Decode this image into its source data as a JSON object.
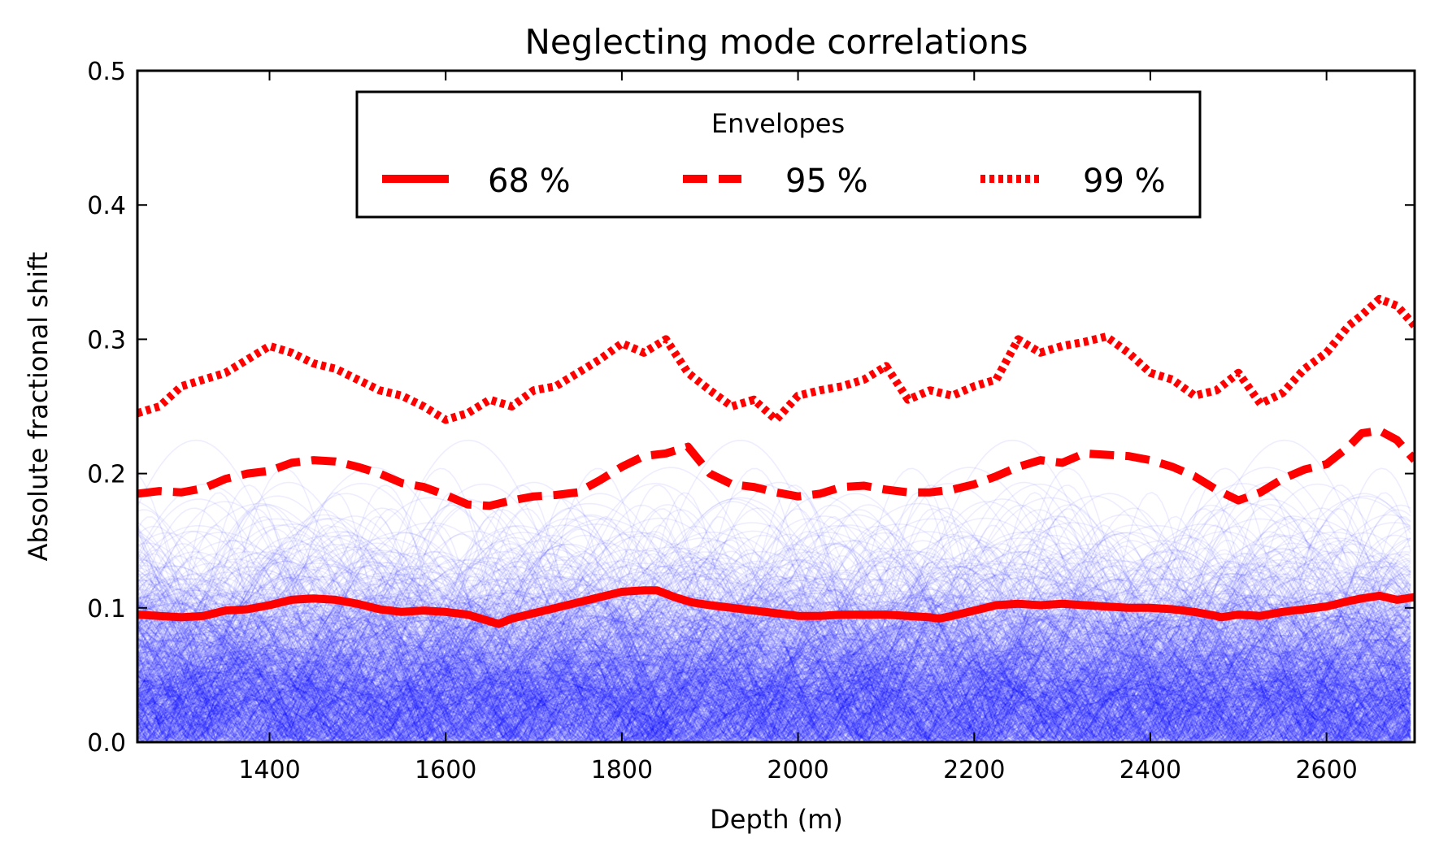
{
  "chart_data": {
    "type": "line",
    "title": "Neglecting mode correlations",
    "xlabel": "Depth (m)",
    "ylabel": "Absolute fractional shift",
    "xlim": [
      1250,
      2700
    ],
    "ylim": [
      0.0,
      0.5
    ],
    "xticks": [
      1400,
      1600,
      1800,
      2000,
      2200,
      2400,
      2600
    ],
    "xtick_labels": [
      "1400",
      "1600",
      "1800",
      "2000",
      "2200",
      "2400",
      "2600"
    ],
    "yticks": [
      0.0,
      0.1,
      0.2,
      0.3,
      0.4,
      0.5
    ],
    "ytick_labels": [
      "0.0",
      "0.1",
      "0.2",
      "0.3",
      "0.4",
      "0.5"
    ],
    "background_traces": {
      "description_color": "#0000ff",
      "count_shown": 700,
      "style": "thin translucent blue arcs |sin| realizations"
    },
    "legend": {
      "title": "Envelopes",
      "position": "upper-center",
      "entries": [
        "68 %",
        "95 %",
        "99 %"
      ]
    },
    "series": [
      {
        "name": "68 %",
        "style": "solid",
        "color": "#ff0000",
        "x": [
          1250,
          1275,
          1300,
          1325,
          1350,
          1375,
          1400,
          1425,
          1450,
          1475,
          1500,
          1525,
          1550,
          1575,
          1600,
          1625,
          1650,
          1660,
          1675,
          1700,
          1725,
          1750,
          1775,
          1800,
          1825,
          1840,
          1860,
          1880,
          1900,
          1925,
          1950,
          1975,
          2000,
          2025,
          2050,
          2075,
          2100,
          2125,
          2150,
          2160,
          2175,
          2200,
          2225,
          2250,
          2275,
          2300,
          2325,
          2350,
          2375,
          2400,
          2425,
          2450,
          2475,
          2480,
          2500,
          2525,
          2550,
          2575,
          2600,
          2625,
          2640,
          2660,
          2680,
          2700
        ],
        "values": [
          0.095,
          0.094,
          0.093,
          0.094,
          0.098,
          0.099,
          0.102,
          0.106,
          0.107,
          0.106,
          0.103,
          0.099,
          0.097,
          0.098,
          0.097,
          0.095,
          0.09,
          0.088,
          0.092,
          0.096,
          0.1,
          0.104,
          0.108,
          0.112,
          0.113,
          0.113,
          0.108,
          0.104,
          0.102,
          0.1,
          0.098,
          0.096,
          0.094,
          0.094,
          0.095,
          0.095,
          0.095,
          0.094,
          0.093,
          0.092,
          0.094,
          0.098,
          0.102,
          0.103,
          0.102,
          0.103,
          0.102,
          0.101,
          0.1,
          0.1,
          0.099,
          0.097,
          0.094,
          0.093,
          0.095,
          0.094,
          0.097,
          0.099,
          0.101,
          0.105,
          0.107,
          0.109,
          0.106,
          0.108
        ]
      },
      {
        "name": "95 %",
        "style": "dashed",
        "color": "#ff0000",
        "x": [
          1250,
          1275,
          1300,
          1325,
          1350,
          1375,
          1400,
          1425,
          1450,
          1475,
          1500,
          1525,
          1550,
          1575,
          1600,
          1625,
          1650,
          1675,
          1700,
          1725,
          1750,
          1775,
          1800,
          1825,
          1850,
          1875,
          1900,
          1925,
          1950,
          1975,
          2000,
          2025,
          2050,
          2075,
          2100,
          2125,
          2150,
          2175,
          2200,
          2225,
          2250,
          2275,
          2300,
          2325,
          2350,
          2375,
          2400,
          2425,
          2450,
          2475,
          2500,
          2525,
          2550,
          2575,
          2600,
          2625,
          2640,
          2660,
          2680,
          2700
        ],
        "values": [
          0.185,
          0.187,
          0.186,
          0.189,
          0.196,
          0.2,
          0.202,
          0.208,
          0.21,
          0.209,
          0.205,
          0.2,
          0.193,
          0.19,
          0.184,
          0.177,
          0.176,
          0.18,
          0.183,
          0.184,
          0.186,
          0.195,
          0.205,
          0.213,
          0.215,
          0.22,
          0.2,
          0.192,
          0.19,
          0.186,
          0.183,
          0.185,
          0.19,
          0.191,
          0.188,
          0.186,
          0.186,
          0.188,
          0.192,
          0.198,
          0.205,
          0.21,
          0.208,
          0.215,
          0.214,
          0.213,
          0.21,
          0.205,
          0.198,
          0.188,
          0.18,
          0.186,
          0.196,
          0.203,
          0.207,
          0.22,
          0.23,
          0.232,
          0.225,
          0.21
        ]
      },
      {
        "name": "99 %",
        "style": "dotted",
        "color": "#ff0000",
        "x": [
          1250,
          1275,
          1300,
          1325,
          1350,
          1375,
          1400,
          1425,
          1450,
          1475,
          1500,
          1525,
          1550,
          1575,
          1600,
          1625,
          1650,
          1675,
          1700,
          1725,
          1750,
          1775,
          1800,
          1825,
          1850,
          1875,
          1900,
          1925,
          1950,
          1975,
          2000,
          2025,
          2050,
          2075,
          2100,
          2125,
          2150,
          2175,
          2200,
          2225,
          2250,
          2275,
          2300,
          2325,
          2350,
          2375,
          2400,
          2425,
          2450,
          2475,
          2500,
          2525,
          2550,
          2575,
          2600,
          2625,
          2640,
          2660,
          2680,
          2700
        ],
        "values": [
          0.245,
          0.25,
          0.265,
          0.27,
          0.275,
          0.285,
          0.295,
          0.29,
          0.282,
          0.278,
          0.27,
          0.262,
          0.258,
          0.25,
          0.24,
          0.245,
          0.255,
          0.25,
          0.262,
          0.265,
          0.275,
          0.285,
          0.297,
          0.29,
          0.3,
          0.275,
          0.262,
          0.25,
          0.255,
          0.24,
          0.258,
          0.262,
          0.265,
          0.27,
          0.28,
          0.255,
          0.262,
          0.258,
          0.265,
          0.27,
          0.3,
          0.29,
          0.295,
          0.298,
          0.302,
          0.29,
          0.275,
          0.27,
          0.258,
          0.262,
          0.275,
          0.252,
          0.26,
          0.278,
          0.29,
          0.31,
          0.318,
          0.33,
          0.325,
          0.31
        ]
      }
    ]
  }
}
